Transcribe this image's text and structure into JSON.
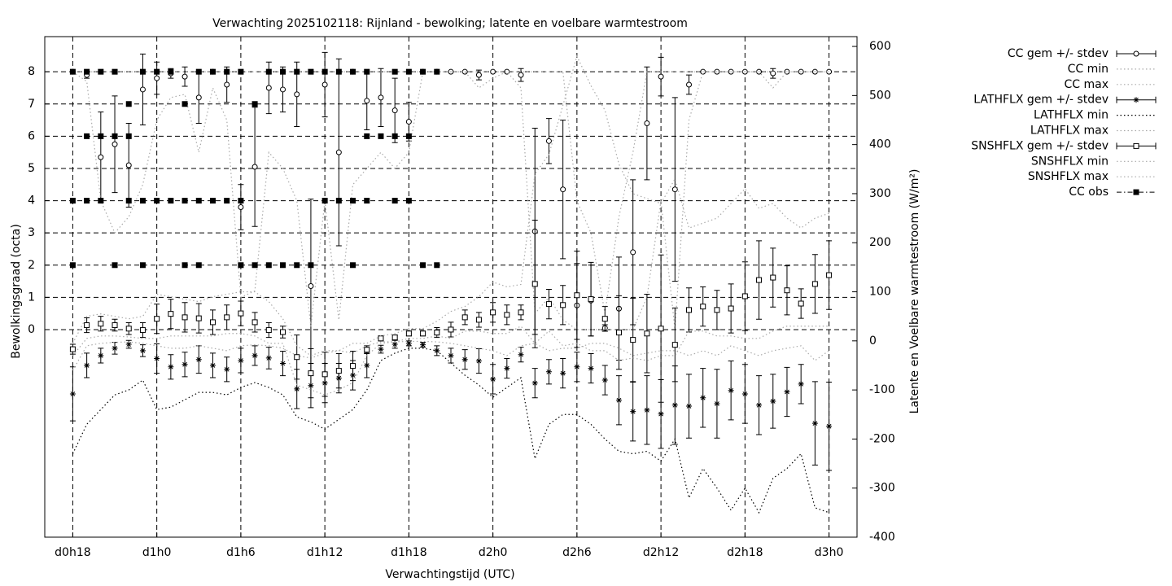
{
  "chart_data": {
    "type": "errorbar",
    "title": "Verwachting 2025102118: Rijnland - bewolking; latente en voelbare warmtestroom",
    "x_label": "Verwachtingstijd (UTC)",
    "y_label": "Bewolkingsgraad (octa)",
    "y2_label": "Latente en Voelbare warmtestroom (W/m²)",
    "grid": true,
    "legend": "outside-right",
    "xlim": [
      16,
      74
    ],
    "ylim": [
      -6.44,
      9.09
    ],
    "y2lim": [
      -400,
      620
    ],
    "xticks": [
      {
        "value": 18,
        "label": "d0h18"
      },
      {
        "value": 24,
        "label": "d1h0"
      },
      {
        "value": 30,
        "label": "d1h6"
      },
      {
        "value": 36,
        "label": "d1h12"
      },
      {
        "value": 42,
        "label": "d1h18"
      },
      {
        "value": 48,
        "label": "d2h0"
      },
      {
        "value": 54,
        "label": "d2h6"
      },
      {
        "value": 60,
        "label": "d2h12"
      },
      {
        "value": 66,
        "label": "d2h18"
      },
      {
        "value": 72,
        "label": "d3h0"
      }
    ],
    "yticks": [
      0,
      1,
      2,
      3,
      4,
      5,
      6,
      7,
      8
    ],
    "y2ticks": [
      -400,
      -300,
      -200,
      -100,
      0,
      100,
      200,
      300,
      400,
      500,
      600
    ],
    "x": [
      18,
      19,
      20,
      21,
      22,
      23,
      24,
      25,
      26,
      27,
      28,
      29,
      30,
      31,
      32,
      33,
      34,
      35,
      36,
      37,
      38,
      39,
      40,
      41,
      42,
      43,
      44,
      45,
      46,
      47,
      48,
      49,
      50,
      51,
      52,
      53,
      54,
      55,
      56,
      57,
      58,
      59,
      60,
      61,
      62,
      63,
      64,
      65,
      66,
      67,
      68,
      69,
      70,
      71,
      72
    ],
    "series": [
      {
        "name": "CC gem +/- stdev",
        "style": "errorbar",
        "marker": "circle",
        "color": "#000000",
        "axis": "y",
        "values": [
          8,
          7.9,
          5.35,
          5.75,
          5.1,
          7.45,
          7.8,
          7.95,
          7.85,
          7.2,
          8,
          7.6,
          3.8,
          5.05,
          7.5,
          7.45,
          7.3,
          1.35,
          7.6,
          5.5,
          8,
          7.1,
          7.2,
          6.8,
          6.45,
          8,
          8,
          8,
          8,
          7.9,
          8,
          8,
          7.9,
          3.05,
          5.85,
          4.35,
          0.75,
          0.9,
          0.05,
          0.65,
          2.4,
          6.4,
          7.85,
          4.35,
          7.6,
          8,
          8,
          8,
          8,
          8,
          7.95,
          8,
          8,
          8,
          8
        ],
        "errors": [
          0,
          0.1,
          1.4,
          1.5,
          1.3,
          1.1,
          0.5,
          0.15,
          0.3,
          0.8,
          0,
          0.55,
          0.7,
          1.85,
          0.8,
          0.7,
          1,
          2.7,
          1,
          2.9,
          0,
          0.9,
          0.9,
          1,
          0.6,
          0,
          0,
          0,
          0,
          0.15,
          0,
          0,
          0.2,
          3.2,
          0.7,
          2.15,
          1.3,
          1.1,
          0.1,
          1.6,
          2.25,
          1.75,
          0.6,
          2.85,
          0.3,
          0,
          0,
          0,
          0,
          0,
          0.15,
          0,
          0,
          0,
          0
        ]
      },
      {
        "name": "CC min",
        "style": "line",
        "dash": "dotted",
        "color": "#aaaaaa",
        "axis": "y",
        "values": [
          8,
          7.7,
          4,
          3,
          3.5,
          4.5,
          6.5,
          7.2,
          7.3,
          5.5,
          7.5,
          6.5,
          1,
          1.2,
          5.5,
          5,
          4,
          0.1,
          4,
          0.3,
          4.5,
          5,
          5.5,
          5,
          5.5,
          8,
          8,
          8,
          8,
          7.5,
          7.8,
          8,
          7.5,
          0.5,
          1,
          0.3,
          0,
          0,
          0,
          0,
          0,
          1,
          4,
          0,
          6.5,
          8,
          8,
          8,
          8,
          8,
          7.5,
          8,
          8,
          8,
          8
        ]
      },
      {
        "name": "CC max",
        "style": "line",
        "dash": "dotted",
        "color": "#aaaaaa",
        "axis": "y",
        "values": [
          8,
          8,
          8,
          8,
          8,
          8,
          8,
          8,
          8,
          8,
          8,
          8,
          8,
          8,
          8,
          8,
          8,
          8,
          8,
          8,
          8,
          8,
          8,
          8,
          8,
          8,
          8,
          8,
          8,
          8,
          8,
          8,
          8,
          8,
          8,
          8,
          4,
          3,
          0.5,
          3.5,
          5.5,
          8,
          8,
          8,
          8,
          8,
          8,
          8,
          8,
          8,
          8,
          8,
          8,
          8,
          8
        ]
      },
      {
        "name": "LATHFLX gem +/- stdev",
        "style": "errorbar",
        "marker": "star",
        "color": "#000000",
        "axis": "y2",
        "values": [
          -108,
          -50,
          -30,
          -15,
          -7,
          -20,
          -36,
          -53,
          -48,
          -38,
          -50,
          -58,
          -40,
          -30,
          -35,
          -46,
          -98,
          -91,
          -86,
          -76,
          -70,
          -50,
          -17,
          -7,
          -5,
          -8,
          -20,
          -30,
          -38,
          -41,
          -78,
          -56,
          -28,
          -86,
          -63,
          -66,
          -53,
          -56,
          -80,
          -121,
          -144,
          -141,
          -149,
          -131,
          -133,
          -116,
          -128,
          -101,
          -108,
          -131,
          -123,
          -104,
          -88,
          -168,
          -174
        ],
        "errors": [
          55,
          25,
          15,
          12,
          8,
          12,
          30,
          25,
          25,
          28,
          25,
          25,
          25,
          20,
          22,
          25,
          40,
          45,
          40,
          30,
          30,
          25,
          8,
          8,
          5,
          5,
          10,
          15,
          20,
          25,
          30,
          20,
          15,
          30,
          25,
          30,
          30,
          30,
          30,
          50,
          60,
          70,
          70,
          80,
          65,
          60,
          70,
          60,
          60,
          60,
          55,
          50,
          40,
          85,
          90
        ]
      },
      {
        "name": "LATHFLX min",
        "style": "line",
        "dash": "dotted",
        "color": "#000000",
        "axis": "y2",
        "values": [
          -230,
          -170,
          -140,
          -110,
          -100,
          -80,
          -140,
          -135,
          -120,
          -105,
          -105,
          -110,
          -95,
          -85,
          -95,
          -110,
          -155,
          -165,
          -180,
          -160,
          -140,
          -100,
          -40,
          -25,
          -15,
          -15,
          -20,
          -45,
          -70,
          -90,
          -115,
          -95,
          -75,
          -240,
          -170,
          -150,
          -150,
          -170,
          -200,
          -225,
          -230,
          -225,
          -245,
          -200,
          -320,
          -260,
          -300,
          -345,
          -300,
          -350,
          -280,
          -260,
          -230,
          -340,
          -350
        ]
      },
      {
        "name": "LATHFLX max",
        "style": "line",
        "dash": "dotted",
        "color": "#aaaaaa",
        "axis": "y2",
        "values": [
          -60,
          -10,
          -5,
          -3,
          -2,
          -5,
          -10,
          -15,
          -15,
          -10,
          -15,
          -20,
          -10,
          -8,
          -10,
          -15,
          -30,
          -35,
          -25,
          -20,
          -25,
          -10,
          -2,
          -2,
          -1,
          -1,
          -2,
          -5,
          -10,
          -15,
          -20,
          -30,
          -10,
          -5,
          -20,
          -15,
          -15,
          -5,
          -5,
          -15,
          -30,
          -25,
          -20,
          -20,
          -30,
          -20,
          -30,
          -10,
          -20,
          -30,
          -20,
          -15,
          -10,
          -40,
          -20
        ]
      },
      {
        "name": "SNSHFLX gem +/- stdev",
        "style": "errorbar",
        "marker": "square",
        "color": "#000000",
        "axis": "y2",
        "values": [
          -17,
          32,
          35,
          32,
          25,
          22,
          45,
          55,
          48,
          46,
          38,
          48,
          56,
          38,
          22,
          18,
          -33,
          -66,
          -68,
          -61,
          -51,
          -18,
          5,
          7,
          15,
          15,
          17,
          23,
          48,
          43,
          58,
          53,
          58,
          116,
          75,
          73,
          93,
          85,
          45,
          17,
          2,
          15,
          25,
          -8,
          63,
          70,
          63,
          66,
          91,
          124,
          129,
          103,
          76,
          116,
          134
        ],
        "errors": [
          10,
          15,
          15,
          12,
          12,
          15,
          30,
          30,
          30,
          30,
          25,
          25,
          25,
          20,
          15,
          12,
          45,
          50,
          45,
          35,
          30,
          8,
          5,
          5,
          5,
          5,
          10,
          15,
          15,
          15,
          20,
          20,
          15,
          130,
          30,
          40,
          90,
          75,
          25,
          75,
          85,
          80,
          150,
          75,
          45,
          40,
          40,
          50,
          70,
          80,
          60,
          50,
          30,
          60,
          70
        ]
      },
      {
        "name": "SNSHFLX min",
        "style": "line",
        "dash": "dotted",
        "color": "#aaaaaa",
        "axis": "y2",
        "values": [
          -30,
          5,
          10,
          10,
          8,
          5,
          5,
          10,
          10,
          10,
          10,
          15,
          15,
          10,
          -5,
          -5,
          -90,
          -100,
          -110,
          -100,
          -85,
          -30,
          -5,
          -2,
          5,
          5,
          10,
          5,
          20,
          20,
          15,
          15,
          30,
          -5,
          20,
          -10,
          -5,
          -20,
          -20,
          -40,
          -35,
          -40,
          -30,
          -30,
          20,
          20,
          10,
          10,
          5,
          5,
          20,
          30,
          30,
          30,
          30
        ]
      },
      {
        "name": "SNSHFLX max",
        "style": "line",
        "dash": "dotted",
        "color": "#aaaaaa",
        "axis": "y2",
        "values": [
          -5,
          50,
          55,
          50,
          45,
          50,
          95,
          90,
          85,
          80,
          90,
          95,
          100,
          100,
          80,
          45,
          -10,
          -30,
          -20,
          -20,
          -5,
          -5,
          10,
          15,
          25,
          25,
          40,
          60,
          70,
          90,
          120,
          110,
          115,
          340,
          380,
          480,
          580,
          520,
          470,
          360,
          300,
          290,
          280,
          330,
          230,
          240,
          250,
          280,
          310,
          270,
          280,
          250,
          230,
          250,
          260
        ]
      },
      {
        "name": "CC obs",
        "style": "points",
        "marker": "filled-square",
        "color": "#000000",
        "axis": "y",
        "x": [
          18,
          19,
          20,
          21,
          23,
          24,
          25,
          27,
          28,
          29,
          30,
          32,
          33,
          34,
          35,
          36,
          37,
          38,
          39,
          41,
          42,
          43,
          44,
          22,
          26,
          31,
          19,
          20,
          21,
          22,
          39,
          40,
          41,
          42,
          18,
          19,
          20,
          22,
          23,
          24,
          25,
          26,
          27,
          28,
          29,
          30,
          36,
          37,
          38,
          39,
          41,
          42,
          18,
          21,
          23,
          26,
          27,
          30,
          31,
          32,
          33,
          34,
          35,
          38,
          43,
          44
        ],
        "values": [
          8,
          8,
          8,
          8,
          8,
          8,
          8,
          8,
          8,
          8,
          8,
          8,
          8,
          8,
          8,
          8,
          8,
          8,
          8,
          8,
          8,
          8,
          8,
          7,
          7,
          7,
          6,
          6,
          6,
          6,
          6,
          6,
          6,
          6,
          4,
          4,
          4,
          4,
          4,
          4,
          4,
          4,
          4,
          4,
          4,
          4,
          4,
          4,
          4,
          4,
          4,
          4,
          2,
          2,
          2,
          2,
          2,
          2,
          2,
          2,
          2,
          2,
          2,
          2,
          2,
          2
        ]
      }
    ]
  }
}
